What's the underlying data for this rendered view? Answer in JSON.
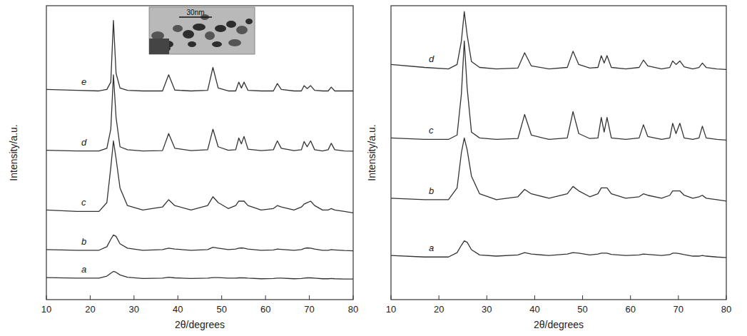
{
  "chart_data": [
    {
      "type": "line",
      "x_label": "2θ/degrees",
      "y_label": "Intensity/a.u.",
      "x": [
        10,
        17,
        22,
        23.8,
        24.7,
        25.3,
        25.9,
        26.8,
        28.5,
        32,
        36.5,
        37.9,
        39.3,
        43,
        46.8,
        48,
        49.2,
        51.5,
        53.2,
        53.9,
        54.5,
        55.1,
        56,
        59,
        61.8,
        62.7,
        63.6,
        66.5,
        68.2,
        68.8,
        69.5,
        70.3,
        71.2,
        73,
        74.3,
        75,
        75.8,
        78,
        80
      ],
      "xlim": [
        10,
        80
      ],
      "xticks": [
        10,
        20,
        30,
        40,
        50,
        60,
        70,
        80
      ],
      "ylim": [
        0,
        100
      ],
      "tick_labels": "x",
      "grid": false,
      "annotations": [
        "30nm"
      ],
      "series": [
        {
          "name": "a",
          "color": "#333333",
          "values": [
            7.5,
            7.3,
            7.3,
            8,
            9,
            9.6,
            9.3,
            8.4,
            7.6,
            7.2,
            7.3,
            7.6,
            7.4,
            7.2,
            7.3,
            7.5,
            7.5,
            7.3,
            7.3,
            7.4,
            7.4,
            7.4,
            7.3,
            7.1,
            7.2,
            7.3,
            7.3,
            7.1,
            7.2,
            7.3,
            7.4,
            7.4,
            7.3,
            7.1,
            7.1,
            7.2,
            7.1,
            7,
            7
          ]
        },
        {
          "name": "b",
          "color": "#333333",
          "values": [
            17,
            16.8,
            16.8,
            18,
            20.5,
            22,
            21.5,
            19,
            17.5,
            16.8,
            17,
            17.5,
            17.2,
            16.8,
            17,
            17.8,
            17.5,
            17,
            17.2,
            17.5,
            17.6,
            17.5,
            17.2,
            16.8,
            16.9,
            17.2,
            17.1,
            16.8,
            17,
            17.4,
            17.6,
            17.5,
            17.2,
            16.8,
            16.8,
            17,
            16.9,
            16.7,
            16.6
          ]
        },
        {
          "name": "c",
          "color": "#333333",
          "values": [
            30.5,
            30,
            30,
            33,
            45,
            54,
            48,
            38,
            32,
            30.5,
            31.5,
            34,
            32,
            30.5,
            32,
            35,
            33,
            31,
            32,
            33.5,
            33.5,
            33.5,
            32,
            30.5,
            31,
            32,
            31.5,
            30.5,
            31.5,
            32.5,
            33,
            33.5,
            32,
            30.5,
            30.5,
            31,
            30.5,
            30,
            29.5
          ]
        },
        {
          "name": "d",
          "color": "#333333",
          "values": [
            50.8,
            50.6,
            50.6,
            51.5,
            58,
            76.5,
            62,
            52,
            51,
            50.6,
            50.7,
            56.5,
            51.5,
            50.7,
            51,
            58,
            52,
            50.8,
            51,
            55,
            53,
            55.5,
            51.2,
            50.7,
            51,
            54,
            51.5,
            50.7,
            51,
            53.8,
            52,
            54,
            51,
            50.6,
            51,
            53.2,
            51,
            50.6,
            50.5
          ]
        },
        {
          "name": "e",
          "color": "#333333",
          "values": [
            71.5,
            71.2,
            71,
            71.5,
            74,
            95,
            77,
            72,
            71.2,
            71,
            71,
            76.5,
            71.3,
            71,
            71.2,
            79,
            72,
            71,
            71,
            74,
            72,
            74,
            71.2,
            71,
            71,
            73.5,
            71.5,
            71,
            71,
            72.8,
            71.8,
            72.8,
            71.2,
            71,
            71,
            72.3,
            71,
            71,
            71
          ]
        }
      ]
    },
    {
      "type": "line",
      "x_label": "2θ/degrees",
      "y_label": "Intensity/a.u.",
      "x": [
        10,
        17,
        22,
        23.8,
        24.7,
        25.3,
        25.9,
        26.8,
        28.5,
        32,
        36.5,
        37.9,
        39.3,
        43,
        46.8,
        48,
        49.2,
        51.5,
        53.2,
        53.9,
        54.5,
        55.1,
        56,
        59,
        61.8,
        62.7,
        63.6,
        66.5,
        68.2,
        68.8,
        69.5,
        70.3,
        71.2,
        73,
        74.3,
        75,
        75.8,
        78,
        80
      ],
      "xlim": [
        10,
        80
      ],
      "xticks": [
        10,
        20,
        30,
        40,
        50,
        60,
        70,
        80
      ],
      "ylim": [
        0,
        100
      ],
      "tick_labels": "x",
      "grid": false,
      "series": [
        {
          "name": "a",
          "color": "#333333",
          "values": [
            15,
            14.5,
            14.5,
            16,
            18.5,
            20,
            19.5,
            17,
            15.2,
            14.8,
            15.2,
            16,
            15.5,
            15,
            15.5,
            16,
            15.8,
            15.2,
            15.5,
            15.8,
            15.8,
            15.8,
            15.4,
            15,
            15.2,
            15.5,
            15.4,
            15,
            15.3,
            15.8,
            15.8,
            15.6,
            15.3,
            14.8,
            14.8,
            15,
            14.8,
            14.5,
            14.3
          ]
        },
        {
          "name": "b",
          "color": "#333333",
          "values": [
            34.5,
            34,
            34,
            38,
            50,
            55,
            51,
            42,
            36,
            34,
            35,
            37.5,
            36,
            34.5,
            36,
            38.5,
            37,
            35,
            36,
            38,
            38,
            38,
            36,
            34.5,
            35,
            36,
            35.5,
            34.5,
            35.5,
            37,
            37,
            37,
            35.5,
            34.5,
            35,
            35.5,
            34.5,
            34,
            33.5
          ]
        },
        {
          "name": "c",
          "color": "#333333",
          "values": [
            55,
            54.5,
            54.5,
            56,
            70,
            88,
            72,
            57,
            55,
            54.5,
            54.8,
            63,
            56,
            54.5,
            55,
            64,
            56.5,
            54.8,
            55,
            62,
            57,
            62,
            55,
            54.5,
            55,
            59.5,
            55.5,
            54.5,
            55,
            60,
            56.5,
            60,
            55,
            54.5,
            55,
            59,
            55,
            54.5,
            54.3
          ]
        },
        {
          "name": "d",
          "color": "#333333",
          "values": [
            80,
            79,
            78.5,
            80,
            88,
            98,
            90,
            81,
            79,
            78.5,
            78.8,
            84,
            79.5,
            78.5,
            79,
            84.5,
            80,
            78.8,
            79,
            83,
            80.5,
            83,
            79,
            78.5,
            79,
            81.5,
            79.5,
            78.5,
            79,
            81.2,
            80,
            81.2,
            79.2,
            78.5,
            79,
            80.5,
            79,
            78.5,
            78.3
          ]
        }
      ]
    }
  ]
}
